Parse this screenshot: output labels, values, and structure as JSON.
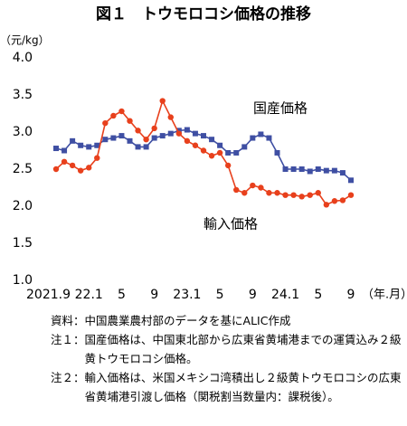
{
  "chart_data": {
    "type": "line",
    "title": "図１　トウモロコシ価格の推移",
    "y_label": "（元/kg）",
    "x_label": "（年.月）",
    "categories": [
      "2021.9",
      null,
      null,
      null,
      "22.1",
      null,
      null,
      null,
      "5",
      null,
      null,
      null,
      "9",
      null,
      null,
      null,
      "23.1",
      null,
      null,
      null,
      "5",
      null,
      null,
      null,
      "9",
      null,
      null,
      null,
      "24.1",
      null,
      null,
      null,
      "5",
      null,
      null,
      null,
      "9"
    ],
    "series": [
      {
        "name": "国産価格",
        "color": "#3f4fa3",
        "marker": "square",
        "values": [
          2.78,
          2.75,
          2.88,
          2.82,
          2.8,
          2.82,
          2.9,
          2.92,
          2.95,
          2.88,
          2.8,
          2.8,
          2.92,
          2.95,
          2.98,
          3.02,
          3.03,
          2.98,
          2.95,
          2.9,
          2.82,
          2.72,
          2.72,
          2.8,
          2.92,
          2.97,
          2.92,
          2.72,
          2.5,
          2.5,
          2.5,
          2.47,
          2.5,
          2.48,
          2.48,
          2.45,
          2.35
        ]
      },
      {
        "name": "輸入価格",
        "color": "#e8401c",
        "marker": "circle",
        "values": [
          2.5,
          2.6,
          2.55,
          2.48,
          2.52,
          2.65,
          3.12,
          3.22,
          3.28,
          3.15,
          3.02,
          2.9,
          3.05,
          3.42,
          3.2,
          2.98,
          2.88,
          2.82,
          2.75,
          2.68,
          2.72,
          2.55,
          2.22,
          2.18,
          2.28,
          2.25,
          2.18,
          2.18,
          2.15,
          2.15,
          2.13,
          2.15,
          2.18,
          2.02,
          2.07,
          2.08,
          2.15
        ]
      }
    ],
    "ylim": [
      1,
      4
    ],
    "yticks": [
      {
        "value": 1,
        "label": "1.0"
      },
      1.5,
      {
        "value": 2,
        "label": "2.0"
      },
      2.5,
      {
        "value": 3,
        "label": "3.0"
      },
      3.5,
      {
        "value": 4,
        "label": "4.0"
      }
    ],
    "grid": false
  },
  "notes": [
    {
      "label": "資料：",
      "text": "中国農業農村部のデータを基にALIC作成"
    },
    {
      "label": "注１：",
      "text": "国産価格は、中国東北部から広東省黄埔港までの運賃込み２級黄トウモロコシ価格。"
    },
    {
      "label": "注２：",
      "text": "輸入価格は、米国メキシコ湾積出し２級黄トウモロコシの広東省黄埔港引渡し価格（関税割当数量内：課税後）。"
    }
  ]
}
